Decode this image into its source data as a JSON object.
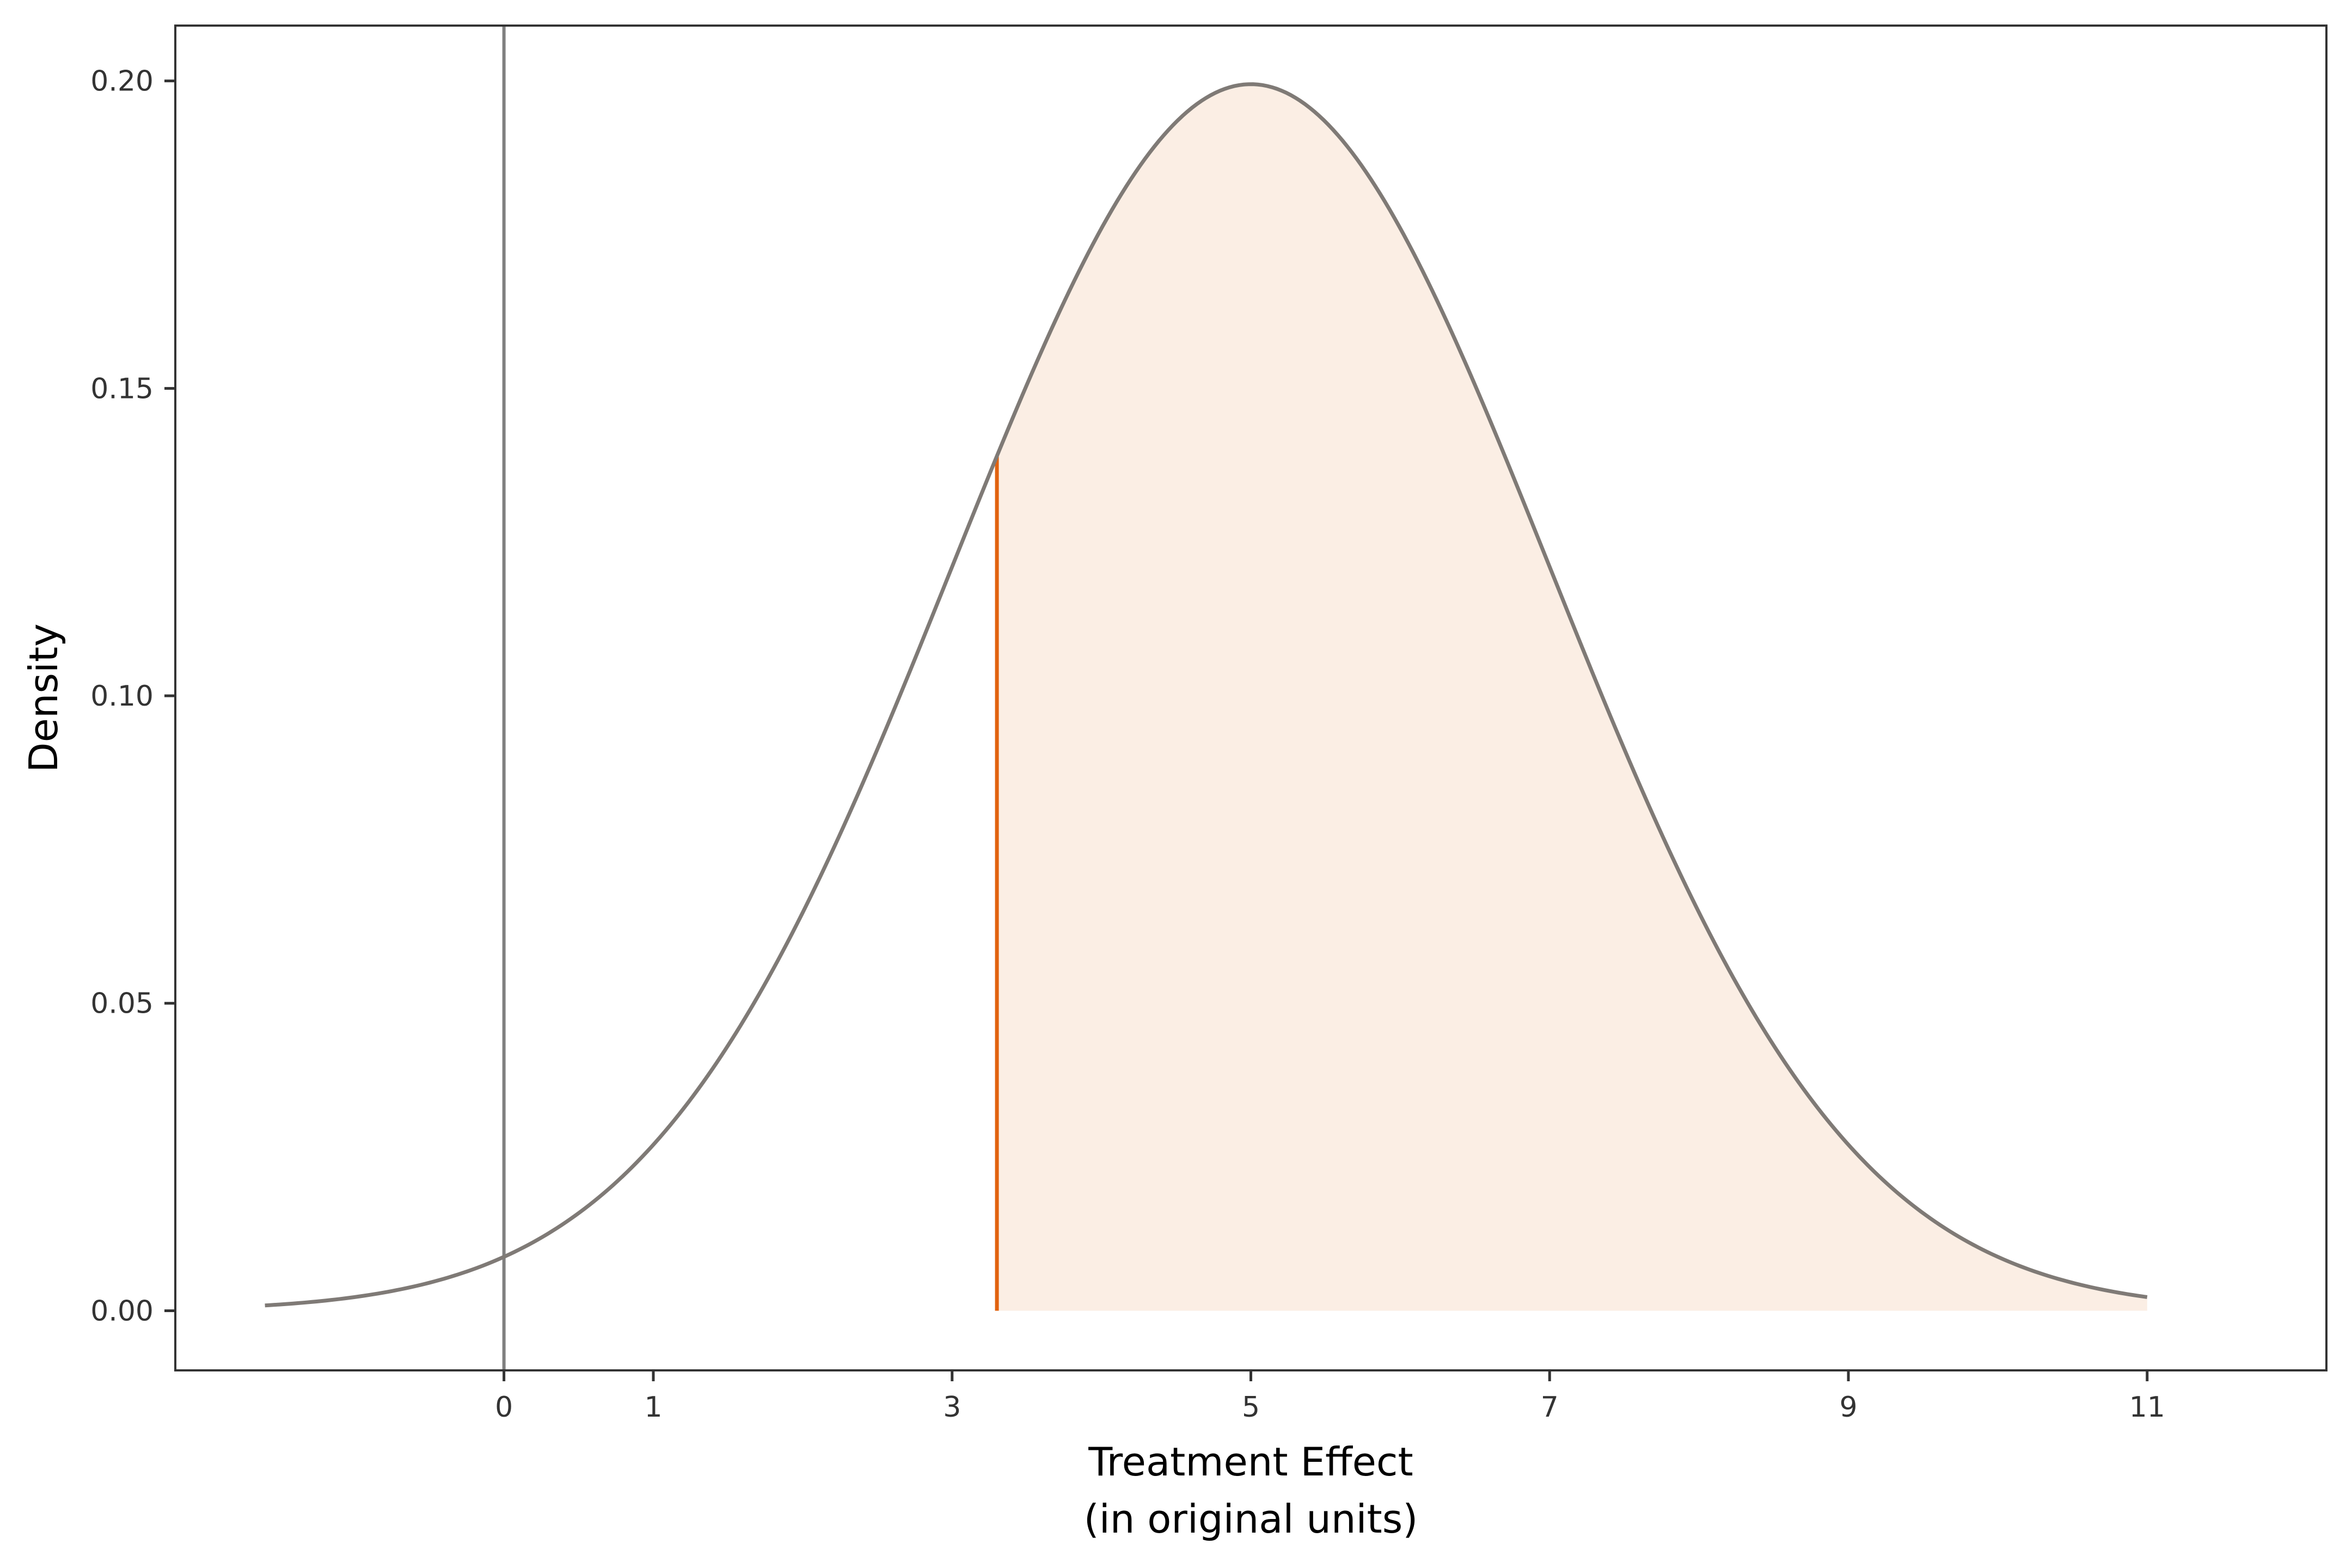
{
  "chart_data": {
    "type": "area",
    "distribution": {
      "kind": "normal",
      "mean": 5,
      "sd": 2
    },
    "x_range": [
      -1.6,
      11
    ],
    "fill_from": 3.3,
    "markers": [
      {
        "x": 0,
        "color": "#808080"
      },
      {
        "x": 3.3,
        "color": "#e1620f"
      }
    ],
    "xlabel_line1": "Treatment Effect",
    "xlabel_line2": "(in original units)",
    "ylabel": "Density",
    "xlim": [
      -2.2,
      12.2
    ],
    "ylim": [
      -0.0097,
      0.209
    ],
    "x_ticks": [
      0,
      1,
      3,
      5,
      7,
      9,
      11
    ],
    "x_tick_labels": [
      "0",
      "1",
      "3",
      "5",
      "7",
      "9",
      "11"
    ],
    "y_ticks": [
      0,
      0.05,
      0.1,
      0.15,
      0.2
    ],
    "y_tick_labels": [
      "0.00",
      "0.05",
      "0.10",
      "0.15",
      "0.20"
    ],
    "grid": false,
    "colors": {
      "curve": "#7f7a76",
      "fill": "#fbeee4",
      "zero_line": "#808080",
      "threshold_line": "#e1620f",
      "panel_border": "#333333"
    }
  }
}
